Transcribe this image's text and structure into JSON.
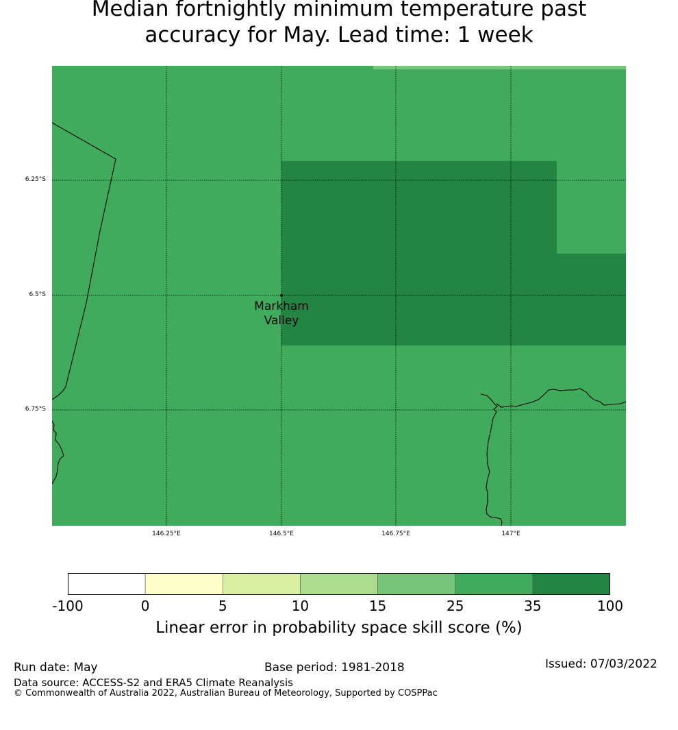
{
  "title": {
    "line1": "Median fortnightly minimum temperature past",
    "line2": "accuracy for May. Lead time: 1 week"
  },
  "map": {
    "lat_ticks": [
      "6.25°S",
      "6.5°S",
      "6.75°S"
    ],
    "lon_ticks": [
      "146.25°E",
      "146.5°E",
      "146.75°E",
      "147°E"
    ],
    "place": {
      "name_line1": "Markham",
      "name_line2": "Valley"
    },
    "colors": {
      "skill_25_35": "#41ab5d",
      "skill_35_100": "#238443",
      "skill_15_25": "#78c679"
    }
  },
  "colorbar": {
    "bins": [
      {
        "range": "-100 to 0",
        "color": "#ffffff"
      },
      {
        "range": "0 to 5",
        "color": "#ffffcc"
      },
      {
        "range": "5 to 10",
        "color": "#d9f0a3"
      },
      {
        "range": "10 to 15",
        "color": "#addd8e"
      },
      {
        "range": "15 to 25",
        "color": "#78c679"
      },
      {
        "range": "25 to 35",
        "color": "#41ab5d"
      },
      {
        "range": "35 to 100",
        "color": "#238443"
      }
    ],
    "labels": [
      "-100",
      "0",
      "5",
      "10",
      "15",
      "25",
      "35",
      "100"
    ],
    "title": "Linear error in probability space skill score (%)"
  },
  "footer": {
    "run_date": "Run date: May",
    "base_period": "Base period: 1981-2018",
    "issued": "Issued: 07/03/2022",
    "data_source": "Data source: ACCESS-S2 and ERA5 Climate Reanalysis",
    "copyright": "© Commonwealth of Australia 2022, Australian Bureau of Meteorology, Supported by COSPPac"
  }
}
